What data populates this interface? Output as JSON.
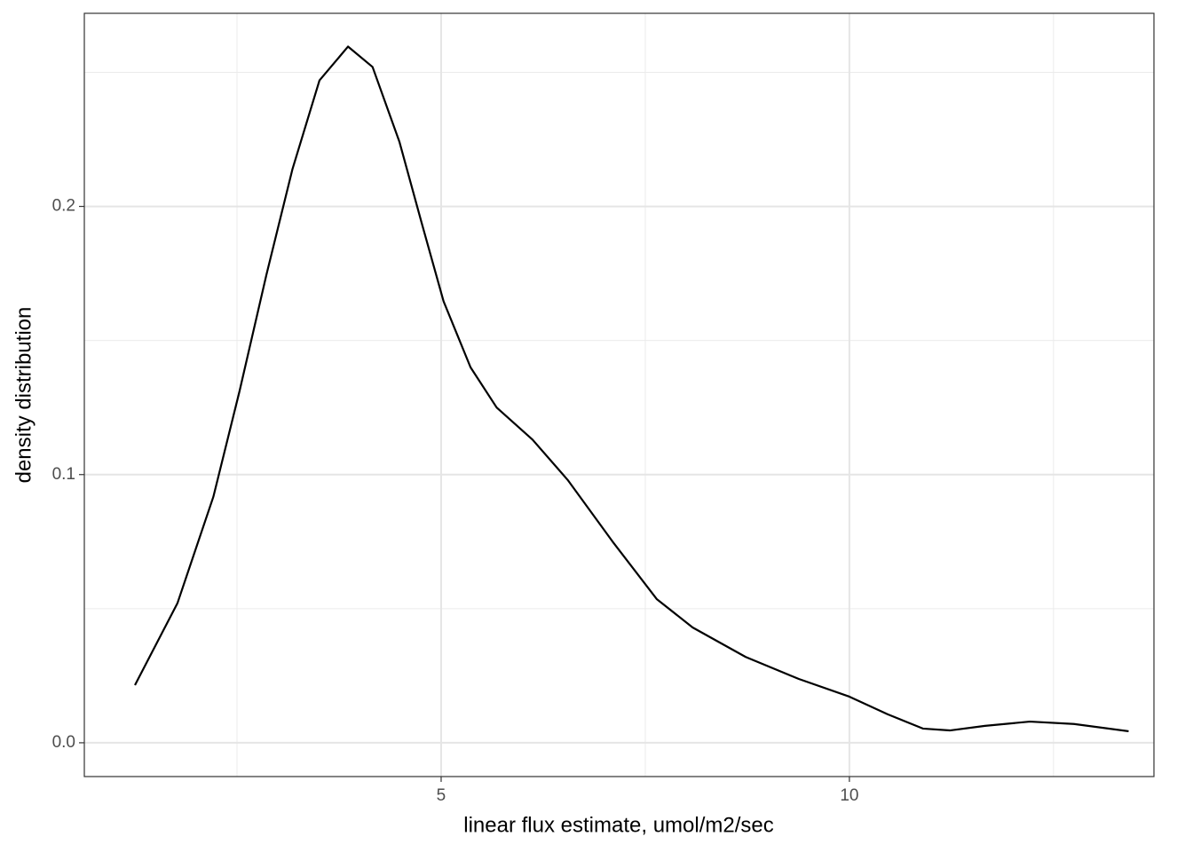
{
  "chart_data": {
    "type": "line",
    "x_label": "linear flux estimate, umol/m2/sec",
    "y_label": "density distribution",
    "x": [
      1.25,
      1.77,
      2.21,
      2.53,
      2.86,
      3.18,
      3.51,
      3.86,
      4.16,
      4.49,
      4.76,
      5.03,
      5.36,
      5.68,
      6.12,
      6.55,
      7.1,
      7.64,
      8.08,
      8.73,
      9.38,
      10.0,
      10.47,
      10.9,
      11.23,
      11.66,
      12.21,
      12.75,
      13.42
    ],
    "series": [
      {
        "color": "#000000",
        "values": [
          0.0215,
          0.052,
          0.0917,
          0.131,
          0.1745,
          0.214,
          0.247,
          0.2596,
          0.252,
          0.224,
          0.194,
          0.1646,
          0.14,
          0.125,
          0.113,
          0.098,
          0.075,
          0.0536,
          0.043,
          0.032,
          0.0238,
          0.0172,
          0.0106,
          0.0053,
          0.0046,
          0.0063,
          0.0079,
          0.007,
          0.0043
        ]
      }
    ],
    "xlim": [
      0.63,
      13.73
    ],
    "ylim": [
      -0.0126,
      0.272
    ],
    "xticks": [
      5,
      10
    ],
    "yticks": [
      {
        "value": 0,
        "label": "0.0"
      },
      0.1,
      0.2
    ],
    "xminorticks": [
      2.5,
      7.5,
      12.5
    ],
    "yminorticks": [
      0.05,
      0.15,
      0.25
    ],
    "grid": true
  }
}
